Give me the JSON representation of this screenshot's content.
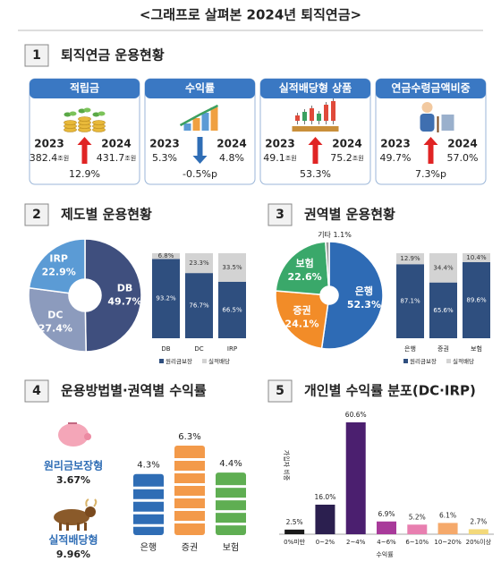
{
  "title": "<그래프로 살펴본 2024년 퇴직연금>",
  "section1": {
    "number": "1",
    "heading": "퇴직연금 운용현황",
    "cards": [
      {
        "title": "적립금",
        "year_from": "2023",
        "year_to": "2024",
        "from_value": "382.4",
        "from_unit": "조원",
        "to_value": "431.7",
        "to_unit": "조원",
        "change": "12.9%"
      },
      {
        "title": "수익률",
        "year_from": "2023",
        "year_to": "2024",
        "from_value": "5.3%",
        "to_value": "4.8%",
        "change": "-0.5%p"
      },
      {
        "title": "실적배당형 상품",
        "year_from": "2023",
        "year_to": "2024",
        "from_value": "49.1",
        "from_unit": "조원",
        "to_value": "75.2",
        "to_unit": "조원",
        "change": "53.3%"
      },
      {
        "title": "연금수령금액비중",
        "year_from": "2023",
        "year_to": "2024",
        "from_value": "49.7%",
        "to_value": "57.0%",
        "change": "7.3%p"
      }
    ]
  },
  "section2": {
    "number": "2",
    "heading": "제도별 운용현황",
    "donut": {
      "type": "pie",
      "categories": [
        "DB",
        "DC",
        "IRP"
      ],
      "values": [
        49.7,
        27.4,
        22.9
      ],
      "value_labels": [
        "49.7%",
        "27.4%",
        "22.9%"
      ],
      "colors": [
        "#3f4f7e",
        "#8c9bbd",
        "#5b9bd5"
      ]
    },
    "bars": {
      "type": "stacked-bar",
      "categories": [
        "DB",
        "DC",
        "IRP"
      ],
      "series": [
        {
          "name": "원리금보장",
          "color": "#2f4f7f",
          "values": [
            93.2,
            76.7,
            66.5
          ],
          "value_labels": [
            "93.2%",
            "76.7%",
            "66.5%"
          ]
        },
        {
          "name": "실적배당",
          "color": "#d3d3d3",
          "values": [
            6.8,
            23.3,
            33.5
          ],
          "value_labels": [
            "6.8%",
            "23.3%",
            "33.5%"
          ]
        }
      ]
    }
  },
  "section3": {
    "number": "3",
    "heading": "권역별 운용현황",
    "donut": {
      "type": "pie",
      "categories": [
        "은행",
        "증권",
        "보험",
        "기타"
      ],
      "values": [
        52.3,
        24.1,
        22.6,
        1.1
      ],
      "value_labels": [
        "52.3%",
        "24.1%",
        "22.6%",
        "1.1%"
      ],
      "colors": [
        "#2e6bb5",
        "#f28c28",
        "#3aa86a",
        "#9a9a9a"
      ]
    },
    "bars": {
      "type": "stacked-bar",
      "categories": [
        "은행",
        "증권",
        "보험"
      ],
      "series": [
        {
          "name": "원리금보장",
          "color": "#2f4f7f",
          "values": [
            87.1,
            65.6,
            89.6
          ],
          "value_labels": [
            "87.1%",
            "65.6%",
            "89.6%"
          ]
        },
        {
          "name": "실적배당",
          "color": "#d3d3d3",
          "values": [
            12.9,
            34.4,
            10.4
          ],
          "value_labels": [
            "12.9%",
            "34.4%",
            "10.4%"
          ]
        }
      ]
    }
  },
  "section4": {
    "number": "4",
    "heading": "운용방법별·권역별 수익률",
    "methods": [
      {
        "name": "원리금보장형",
        "value": "3.67%"
      },
      {
        "name": "실적배당형",
        "value": "9.96%"
      }
    ],
    "bars": {
      "type": "bar",
      "categories": [
        "은행",
        "증권",
        "보험"
      ],
      "values": [
        4.3,
        6.3,
        4.4
      ],
      "value_labels": [
        "4.3%",
        "6.3%",
        "4.4%"
      ],
      "colors": [
        "#2f6db5",
        "#f39a4a",
        "#5fae52"
      ]
    }
  },
  "section5": {
    "number": "5",
    "heading": "개인별 수익률 분포(DC·IRP)",
    "chart": {
      "type": "bar",
      "y_label": "가입자 비중",
      "x_label": "수익률",
      "categories": [
        "0%미만",
        "0~2%",
        "2~4%",
        "4~6%",
        "6~10%",
        "10~20%",
        "20%이상"
      ],
      "values": [
        2.5,
        16.0,
        60.6,
        6.9,
        5.2,
        6.1,
        2.7
      ],
      "value_labels": [
        "2.5%",
        "16.0%",
        "60.6%",
        "6.9%",
        "5.2%",
        "6.1%",
        "2.7%"
      ],
      "colors": [
        "#1a1a1a",
        "#2b1f4f",
        "#4b1f6f",
        "#a83a9a",
        "#e87fb0",
        "#f5a96b",
        "#f3d97a"
      ]
    }
  }
}
